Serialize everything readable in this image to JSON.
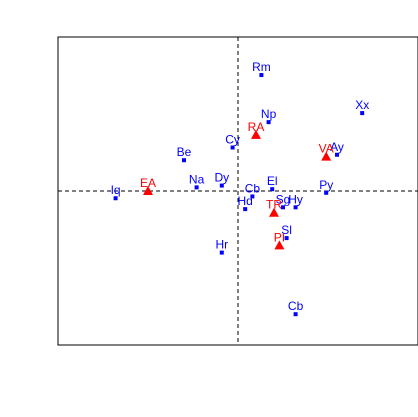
{
  "chart_data": {
    "type": "scatter",
    "title": "",
    "xlabel": "",
    "ylabel": "",
    "xlim": [
      -1.0,
      1.0
    ],
    "ylim": [
      -0.85,
      0.85
    ],
    "reference_lines": {
      "x": 0,
      "y": 0,
      "style": "dashed"
    },
    "grid": false,
    "series": [
      {
        "marker": "square",
        "color": "#0000ff",
        "points": [
          {
            "label": "Rm",
            "x": 0.13,
            "y": 0.64
          },
          {
            "label": "Np",
            "x": 0.17,
            "y": 0.38
          },
          {
            "label": "Xx",
            "x": 0.69,
            "y": 0.43
          },
          {
            "label": "Cy",
            "x": -0.03,
            "y": 0.24
          },
          {
            "label": "Be",
            "x": -0.3,
            "y": 0.17
          },
          {
            "label": "Ay",
            "x": 0.55,
            "y": 0.2
          },
          {
            "label": "Na",
            "x": -0.23,
            "y": 0.02
          },
          {
            "label": "Dy",
            "x": -0.09,
            "y": 0.03
          },
          {
            "label": "Cb",
            "x": 0.08,
            "y": -0.03
          },
          {
            "label": "El",
            "x": 0.19,
            "y": 0.01
          },
          {
            "label": "Py",
            "x": 0.49,
            "y": -0.01
          },
          {
            "label": "Iq",
            "x": -0.68,
            "y": -0.04
          },
          {
            "label": "Hd",
            "x": 0.04,
            "y": -0.1
          },
          {
            "label": "Hy",
            "x": 0.32,
            "y": -0.09
          },
          {
            "label": "Sg",
            "x": 0.25,
            "y": -0.09
          },
          {
            "label": "Sl",
            "x": 0.27,
            "y": -0.26
          },
          {
            "label": "Hr",
            "x": -0.09,
            "y": -0.34
          },
          {
            "label": "Cb",
            "x": 0.32,
            "y": -0.68
          }
        ]
      },
      {
        "marker": "triangle",
        "color": "#ff0000",
        "points": [
          {
            "label": "RA",
            "x": 0.1,
            "y": 0.31
          },
          {
            "label": "VA",
            "x": 0.49,
            "y": 0.19
          },
          {
            "label": "EA",
            "x": -0.5,
            "y": 0.0
          },
          {
            "label": "TR",
            "x": 0.2,
            "y": -0.12
          },
          {
            "label": "PI",
            "x": 0.23,
            "y": -0.3
          }
        ]
      }
    ]
  }
}
